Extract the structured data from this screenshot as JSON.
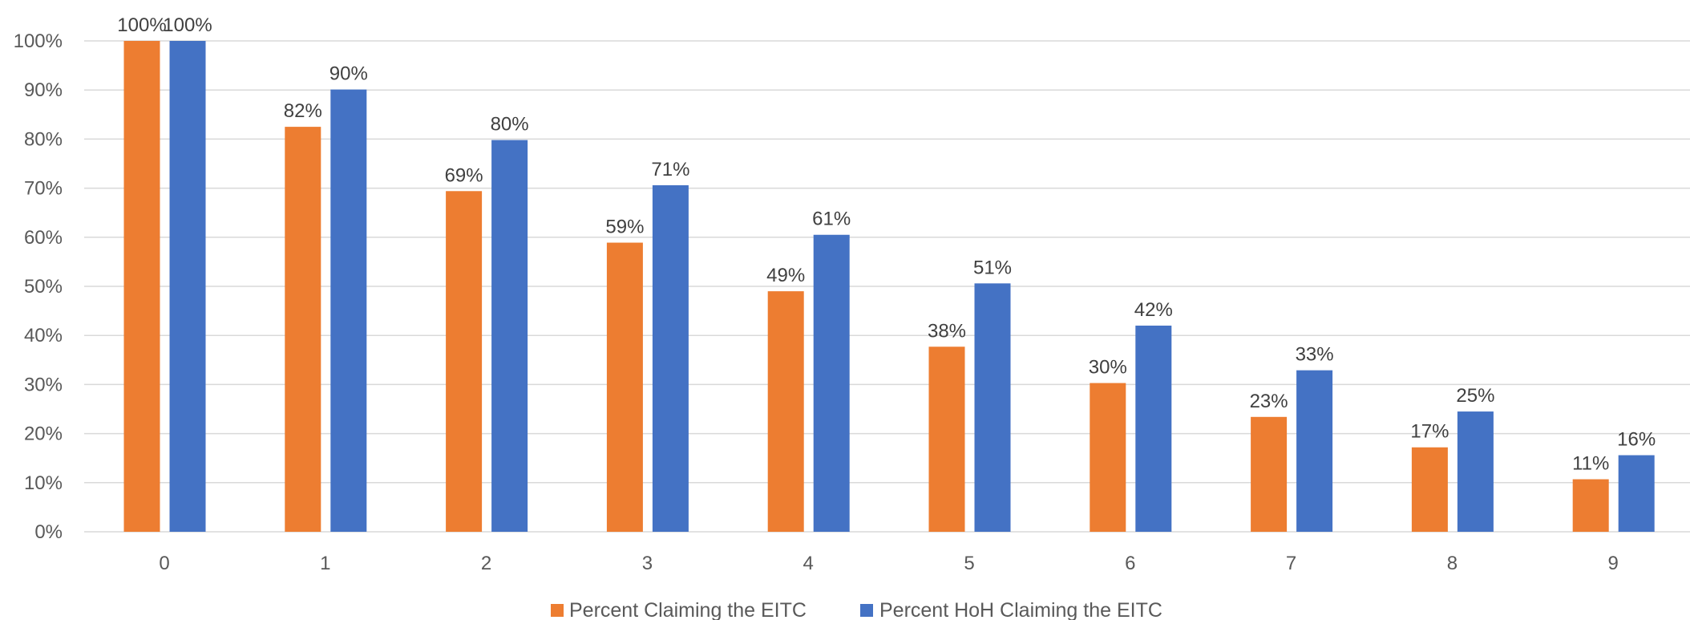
{
  "chart_data": {
    "type": "bar",
    "title": "",
    "xlabel": "",
    "ylabel": "",
    "categories": [
      "0",
      "1",
      "2",
      "3",
      "4",
      "5",
      "6",
      "7",
      "8",
      "9"
    ],
    "ylim": [
      0,
      100
    ],
    "y_ticks": [
      "0%",
      "10%",
      "20%",
      "30%",
      "40%",
      "50%",
      "60%",
      "70%",
      "80%",
      "90%",
      "100%"
    ],
    "grid": true,
    "legend_position": "bottom",
    "series": [
      {
        "name": "Percent Claiming the EITC",
        "color": "#ED7D31",
        "values": [
          100,
          82.5,
          69.4,
          58.9,
          49.0,
          37.7,
          30.3,
          23.4,
          17.2,
          10.7
        ],
        "labels": [
          "100%",
          "82%",
          "69%",
          "59%",
          "49%",
          "38%",
          "30%",
          "23%",
          "17%",
          "11%"
        ]
      },
      {
        "name": "Percent HoH Claiming the EITC",
        "color": "#4472C4",
        "values": [
          100,
          90.1,
          79.8,
          70.6,
          60.5,
          50.6,
          42.0,
          32.9,
          24.5,
          15.6
        ],
        "labels": [
          "100%",
          "90%",
          "80%",
          "71%",
          "61%",
          "51%",
          "42%",
          "33%",
          "25%",
          "16%"
        ]
      }
    ]
  }
}
